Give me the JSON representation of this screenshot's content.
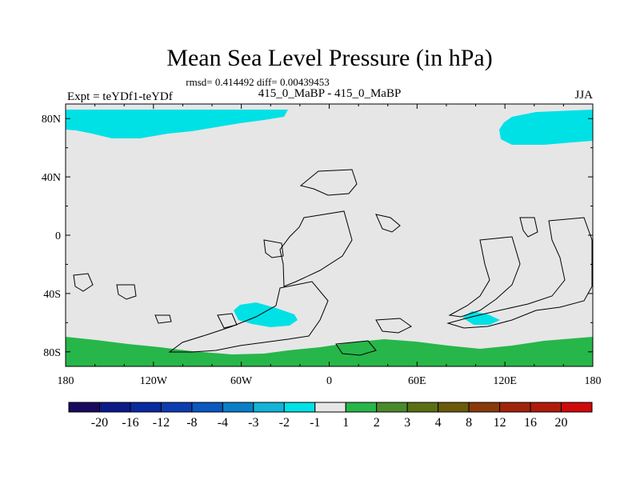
{
  "chart_data": {
    "type": "heatmap",
    "title": "Mean Sea Level Pressure (in hPa)",
    "subtitle_stats": "rmsd= 0.414492 diff= 0.00439453",
    "center_label": "415_0_MaBP - 415_0_MaBP",
    "left_label": "Expt = teYDf1-teYDf",
    "right_label": "JJA",
    "x_ticks": [
      "180",
      "120W",
      "60W",
      "0",
      "60E",
      "120E",
      "180"
    ],
    "y_ticks": [
      "80N",
      "40N",
      "0",
      "40S",
      "80S"
    ],
    "xlim": [
      -180,
      180
    ],
    "ylim": [
      -90,
      90
    ],
    "colorbar_labels": [
      "-20",
      "-16",
      "-12",
      "-8",
      "-4",
      "-3",
      "-2",
      "-1",
      "1",
      "2",
      "3",
      "4",
      "8",
      "12",
      "16",
      "20"
    ],
    "colorbar_colors": [
      "#1a0a5e",
      "#0c1a8a",
      "#0a2aa0",
      "#0c3cb0",
      "#0a58c0",
      "#0a7fc8",
      "#13b4d8",
      "#00e1e6",
      "#e6e6e6",
      "#27b64a",
      "#4a8a2a",
      "#5a7014",
      "#6a5a0a",
      "#8a3a0a",
      "#a0240a",
      "#b01a0a",
      "#d00a0a"
    ],
    "field_colors": {
      "background": "#e6e6e6",
      "negative_small": "#00e1e6",
      "positive_small": "#27b64a"
    },
    "regions": [
      {
        "name": "arctic-west",
        "value_range": "-2 to -1"
      },
      {
        "name": "arctic-east",
        "value_range": "-2 to -1"
      },
      {
        "name": "south-atlantic",
        "value_range": "-2 to -1"
      },
      {
        "name": "south-indian",
        "value_range": "-2 to -1"
      },
      {
        "name": "antarctic",
        "value_range": "1 to 2"
      }
    ]
  }
}
